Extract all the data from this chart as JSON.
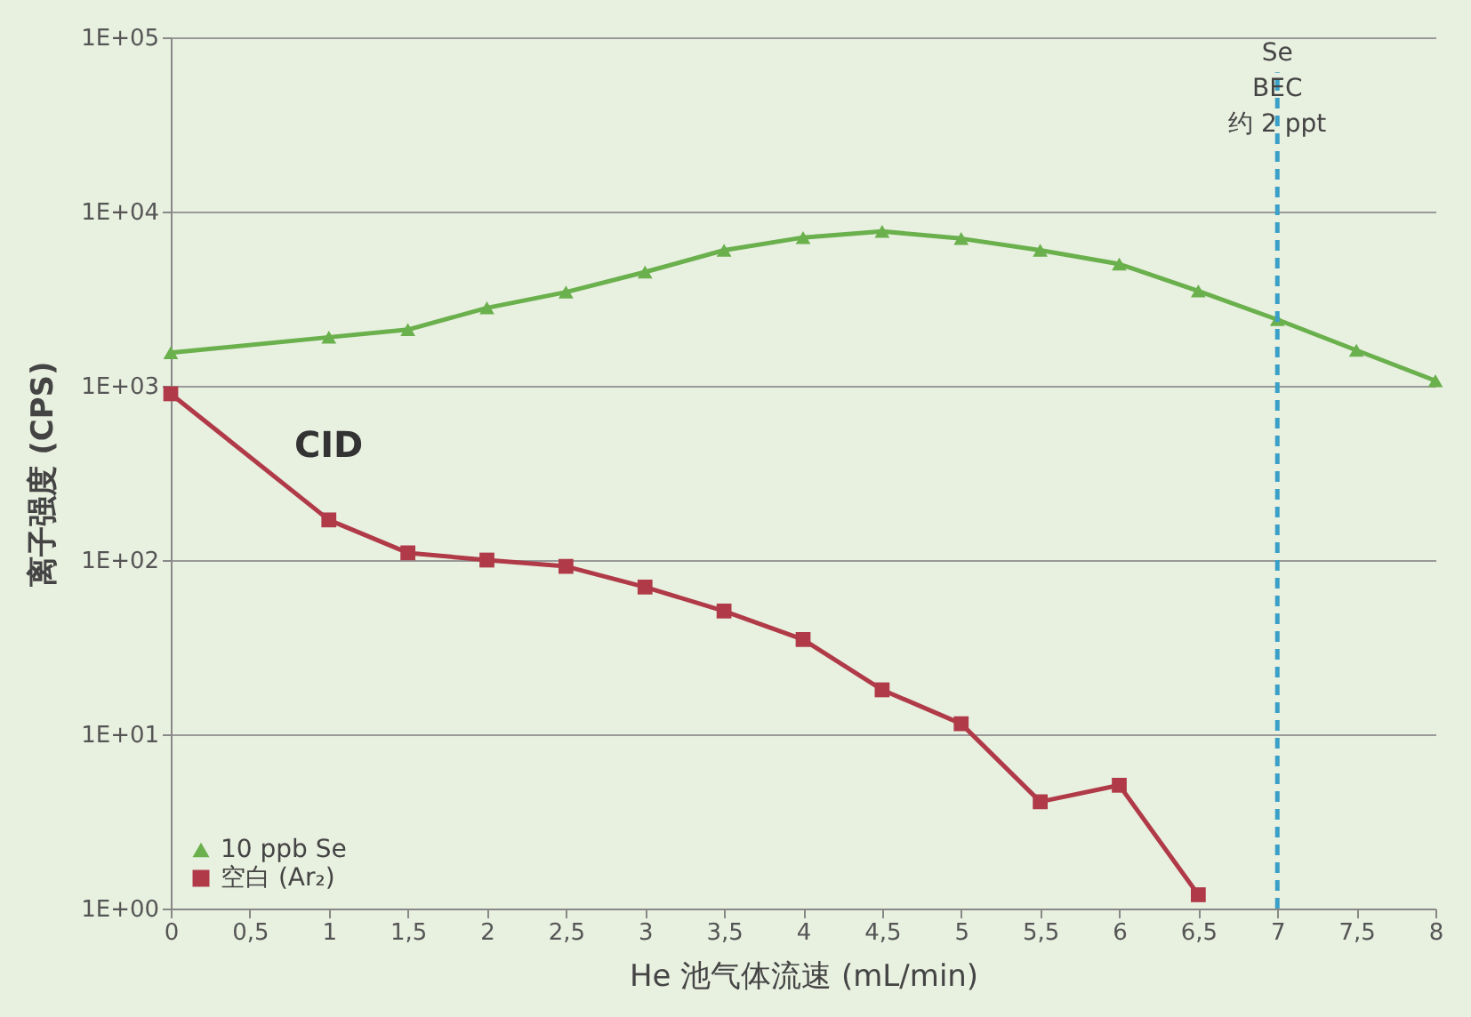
{
  "chart_data": {
    "type": "line",
    "xlabel": "He 池气体流速 (mL/min)",
    "ylabel": "离子强度 (CPS)",
    "log": "y",
    "grid": "y",
    "legend": "bottom left",
    "line_style": "solid",
    "xlim": [
      0,
      8
    ],
    "xticks": [
      0,
      {
        "value": 0.5,
        "label": "0,5"
      },
      1,
      {
        "value": 1.5,
        "label": "1,5"
      },
      2,
      {
        "value": 2.5,
        "label": "2,5"
      },
      3,
      {
        "value": 3.5,
        "label": "3,5"
      },
      4,
      {
        "value": 4.5,
        "label": "4,5"
      },
      5,
      {
        "value": 5.5,
        "label": "5,5"
      },
      6,
      {
        "value": 6.5,
        "label": "6,5"
      },
      7,
      {
        "value": 7.5,
        "label": "7,5"
      },
      8
    ],
    "ylim": [
      1,
      100000
    ],
    "yticks": [
      {
        "value": 1,
        "label": "1E+00"
      },
      {
        "value": 10,
        "label": "1E+01"
      },
      {
        "value": 100,
        "label": "1E+02"
      },
      {
        "value": 1000,
        "label": "1E+03"
      },
      {
        "value": 10000,
        "label": "1E+04"
      },
      {
        "value": 100000,
        "label": "1E+05"
      }
    ],
    "series": [
      {
        "name": "10 ppb Se",
        "color": "#6ab04c",
        "marker": "triangle",
        "x": [
          0,
          1,
          1.5,
          2,
          2.5,
          3,
          3.5,
          4,
          4.5,
          5,
          5.5,
          6,
          6.5,
          7,
          7.5,
          8
        ],
        "values": [
          1550,
          1900,
          2100,
          2800,
          3450,
          4500,
          6000,
          7100,
          7700,
          7000,
          6000,
          5000,
          3500,
          2400,
          1600,
          1070
        ]
      },
      {
        "name": "空白 (Ar₂)",
        "color": "#b03a48",
        "marker": "square",
        "x": [
          0,
          1,
          1.5,
          2,
          2.5,
          3,
          3.5,
          4,
          4.5,
          5,
          5.5,
          6,
          6.5
        ],
        "values": [
          900,
          170,
          110,
          100,
          92,
          70,
          51,
          35,
          18,
          11.5,
          4.1,
          5.1,
          1.2
        ]
      }
    ],
    "ref_lines": [
      {
        "axis": "x",
        "value": 7,
        "label": "Se\nBEC\n约 2 ppt",
        "color": "#3aa0c8",
        "line_style": "dashed"
      }
    ],
    "annotations": [
      {
        "text": "CID",
        "x": 0.5,
        "y": 400
      }
    ]
  }
}
